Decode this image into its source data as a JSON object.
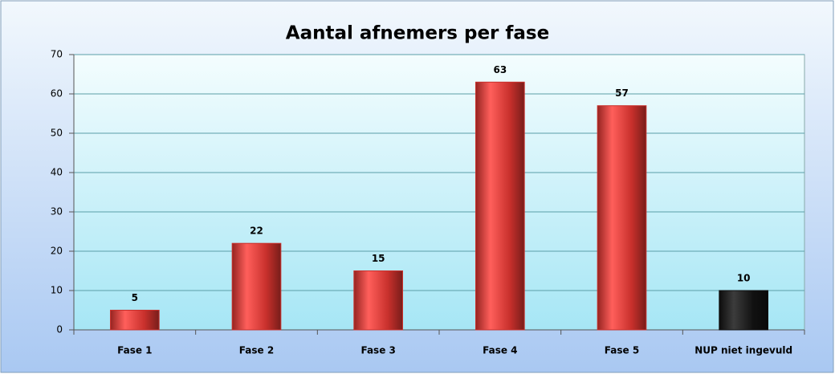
{
  "chart_data": {
    "type": "bar",
    "title": "Aantal afnemers per fase",
    "categories": [
      "Fase 1",
      "Fase 2",
      "Fase 3",
      "Fase 4",
      "Fase 5",
      "NUP niet ingevuld"
    ],
    "values": [
      5,
      22,
      15,
      63,
      57,
      10
    ],
    "colors": [
      "#c8302c",
      "#c8302c",
      "#c8302c",
      "#c8302c",
      "#c8302c",
      "#111111"
    ],
    "ylim": [
      0,
      70
    ],
    "yticks": [
      0,
      10,
      20,
      30,
      40,
      50,
      60,
      70
    ],
    "grid": true
  }
}
